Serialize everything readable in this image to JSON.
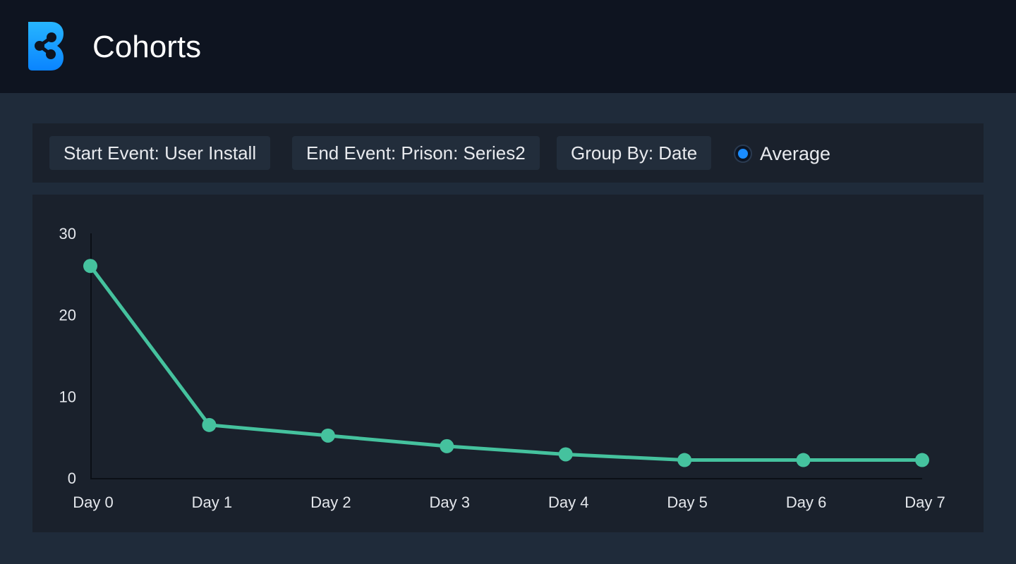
{
  "header": {
    "app_title": "Cohorts",
    "logo_icon": "brand-logo-icon",
    "logo_color": "#1aa3ff"
  },
  "toolbar": {
    "start_event": "Start Event: User Install",
    "end_event": "End Event: Prison: Series2",
    "group_by": "Group By: Date",
    "average_label": "Average",
    "average_selected": true,
    "radio_color": "#1a8cff"
  },
  "chart_data": {
    "type": "line",
    "categories": [
      "Day 0",
      "Day 1",
      "Day 2",
      "Day 3",
      "Day 4",
      "Day 5",
      "Day 6",
      "Day 7"
    ],
    "series": [
      {
        "values": [
          26,
          6.5,
          5.2,
          3.9,
          2.9,
          2.2,
          2.2,
          2.2
        ],
        "color": "#45c29e"
      }
    ],
    "ylim": [
      0,
      30
    ],
    "yticks": [
      0,
      10,
      20,
      30
    ],
    "grid": false,
    "title": "",
    "xlabel": "",
    "ylabel": ""
  }
}
